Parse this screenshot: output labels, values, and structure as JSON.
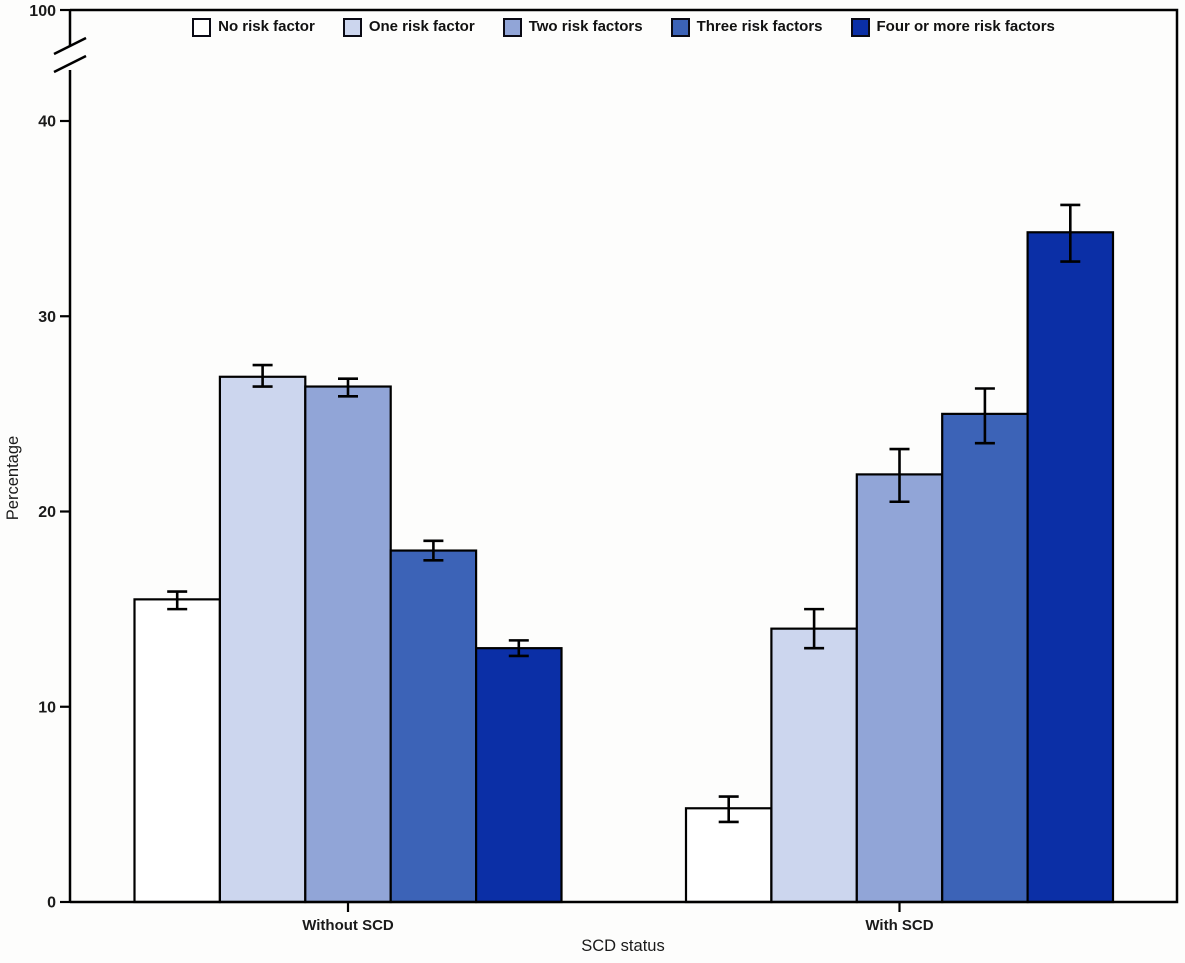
{
  "chart_data": {
    "type": "bar",
    "title": "",
    "xlabel": "SCD status",
    "ylabel": "Percentage",
    "categories": [
      "Without SCD",
      "With SCD"
    ],
    "y_axis": {
      "ticks": [
        0,
        10,
        20,
        30,
        40
      ],
      "top_tick": 100,
      "axis_break_between": [
        40,
        100
      ],
      "unit": "percent"
    },
    "grid": false,
    "legend_position": "top-center",
    "error_bars": "confidence-interval whiskers",
    "series": [
      {
        "name": "No risk factor",
        "color": "#ffffff",
        "values": [
          15.5,
          4.8
        ],
        "ci_low": [
          15.0,
          4.1
        ],
        "ci_high": [
          15.9,
          5.4
        ]
      },
      {
        "name": "One risk factor",
        "color": "#ccd6ee",
        "values": [
          26.9,
          14.0
        ],
        "ci_low": [
          26.4,
          13.0
        ],
        "ci_high": [
          27.5,
          15.0
        ]
      },
      {
        "name": "Two risk factors",
        "color": "#91a5d7",
        "values": [
          26.4,
          21.9
        ],
        "ci_low": [
          25.9,
          20.5
        ],
        "ci_high": [
          26.8,
          23.2
        ]
      },
      {
        "name": "Three risk factors",
        "color": "#3c63b7",
        "values": [
          18.0,
          25.0
        ],
        "ci_low": [
          17.5,
          23.5
        ],
        "ci_high": [
          18.5,
          26.3
        ]
      },
      {
        "name": "Four or more risk factors",
        "color": "#0b2fa6",
        "values": [
          13.0,
          34.3
        ],
        "ci_low": [
          12.6,
          32.8
        ],
        "ci_high": [
          13.4,
          35.7
        ]
      }
    ]
  }
}
